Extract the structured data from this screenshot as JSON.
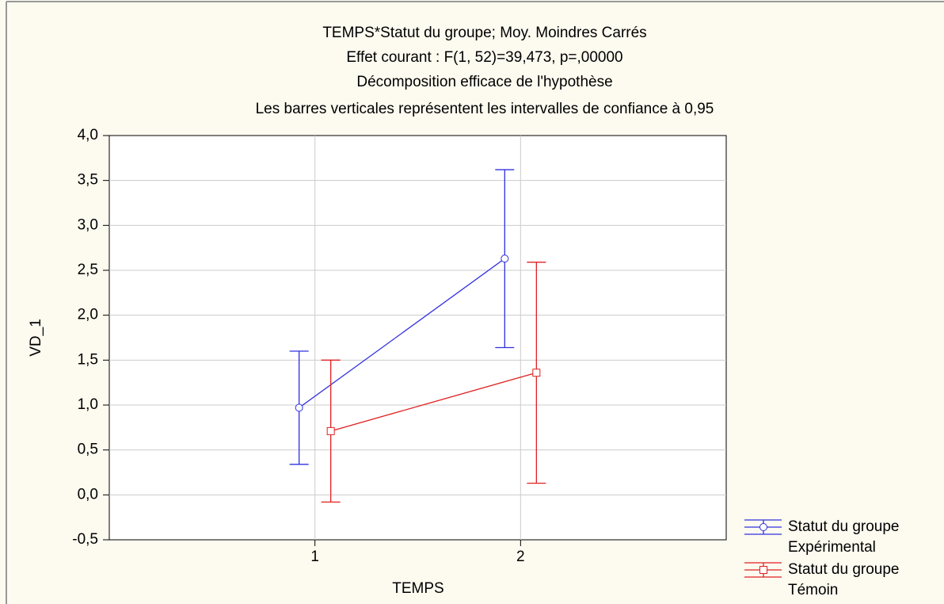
{
  "chart_data": {
    "type": "line",
    "title": [
      "TEMPS*Statut du groupe; Moy. Moindres Carrés",
      "Effet courant : F(1, 52)=39,473, p=,00000",
      "Décomposition efficace de l'hypothèse",
      "Les barres verticales représentent les intervalles de confiance à 0,95"
    ],
    "x_label": "TEMPS",
    "y_label": "VD_1",
    "x": [
      1,
      2
    ],
    "series": [
      {
        "group": "Statut du groupe",
        "name": "Expérimental",
        "color": "#3030e0",
        "marker": "circle",
        "values": [
          0.97,
          2.63
        ],
        "errors": [
          0.63,
          0.99
        ]
      },
      {
        "group": "Statut du groupe",
        "name": "Témoin",
        "color": "#e02020",
        "marker": "square",
        "values": [
          0.71,
          1.36
        ],
        "errors": [
          0.79,
          1.23
        ]
      }
    ],
    "xlim": [
      0,
      3
    ],
    "xticks": [
      1,
      2
    ],
    "ylim": [
      -0.5,
      4
    ],
    "yticks": [
      {
        "value": -0.5,
        "label": "-0,5"
      },
      {
        "value": 0,
        "label": "0,0"
      },
      {
        "value": 0.5,
        "label": "0,5"
      },
      {
        "value": 1,
        "label": "1,0"
      },
      {
        "value": 1.5,
        "label": "1,5"
      },
      {
        "value": 2,
        "label": "2,0"
      },
      {
        "value": 2.5,
        "label": "2,5"
      },
      {
        "value": 3,
        "label": "3,0"
      },
      {
        "value": 3.5,
        "label": "3,5"
      },
      {
        "value": 4,
        "label": "4,0"
      }
    ],
    "grid": true,
    "legend": "bottom-right"
  }
}
